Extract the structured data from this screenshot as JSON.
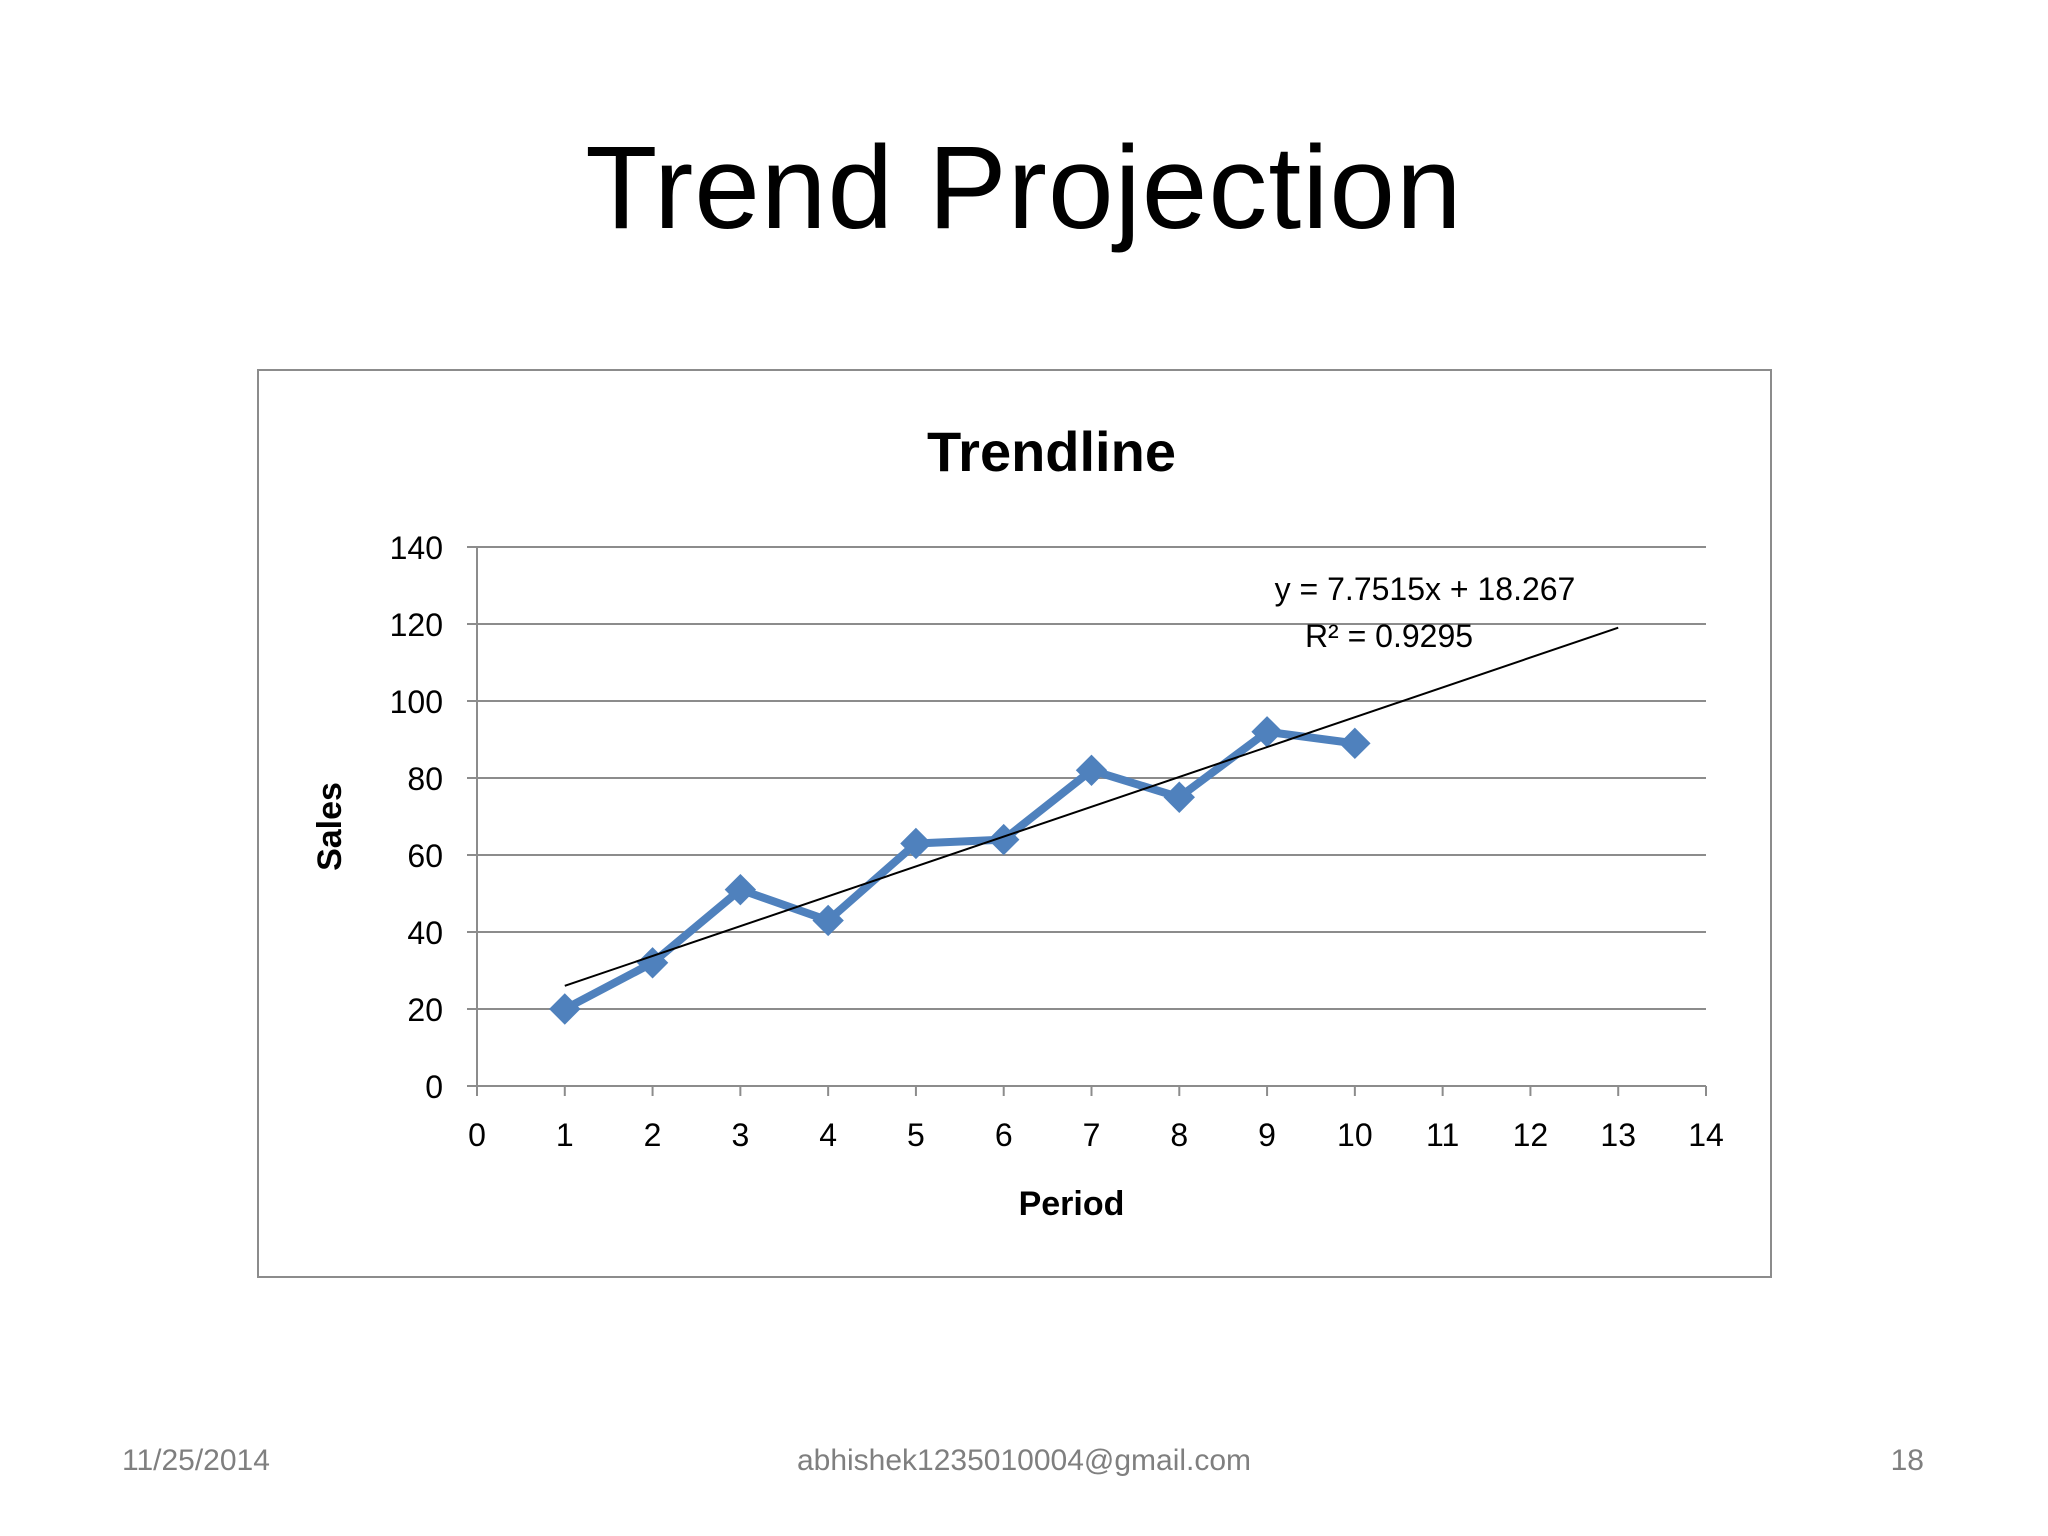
{
  "slide": {
    "title": "Trend Projection",
    "footer_date": "11/25/2014",
    "footer_email": "abhishek1235010004@gmail.com",
    "page_number": "18"
  },
  "chart_data": {
    "type": "line",
    "title": "Trendline",
    "xlabel": "Period",
    "ylabel": "Sales",
    "xlim": [
      0,
      14
    ],
    "ylim": [
      0,
      140
    ],
    "x_ticks": [
      0,
      1,
      2,
      3,
      4,
      5,
      6,
      7,
      8,
      9,
      10,
      11,
      12,
      13,
      14
    ],
    "y_ticks": [
      0,
      20,
      40,
      60,
      80,
      100,
      120,
      140
    ],
    "grid": "horizontal",
    "series": [
      {
        "x": [
          1,
          2,
          3,
          4,
          5,
          6,
          7,
          8,
          9,
          10
        ],
        "values": [
          20,
          32,
          51,
          43,
          63,
          64,
          82,
          75,
          92,
          89
        ],
        "color": "#4f81bd",
        "marker": "diamond"
      }
    ],
    "trendline": {
      "x_range": [
        1,
        13
      ],
      "slope": 7.7515,
      "intercept": 18.267,
      "color": "#000000",
      "equation": "y = 7.7515x + 18.267",
      "r_squared": "R² = 0.9295"
    }
  }
}
